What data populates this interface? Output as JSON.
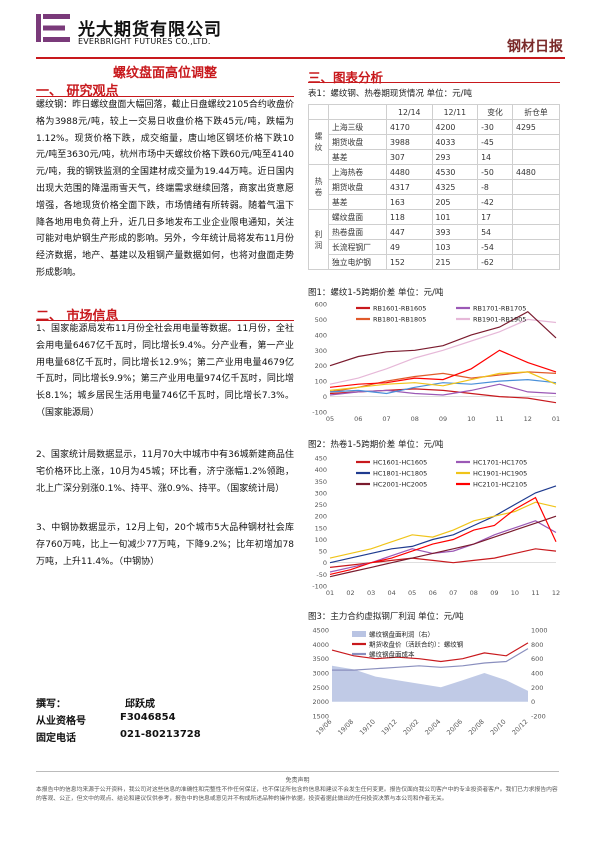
{
  "header": {
    "company_cn": "光大期货有限公司",
    "company_en": "EVERBRIGHT FUTURES CO.,LTD.",
    "report_title": "钢材日报"
  },
  "headline": "螺纹盘面高位调整",
  "section1": {
    "title": "一、  研究观点",
    "text": "螺纹钢：昨日螺纹盘面大幅回落，截止日盘螺纹2105合约收盘价格为3988元/吨，较上一交易日收盘价格下跌45元/吨，跌幅为1.12%。现货价格下跌，成交缩量，唐山地区钢坯价格下跌10元/吨至3630元/吨，杭州市场中天螺纹价格下跌60元/吨至4140元/吨，我的钢铁监测的全国建材成交量为19.44万吨。近日国内出现大范围的降温雨雪天气，终端需求继续回落，商家出货意愿增强，各地现货价格全面下跌，市场情绪有所转弱。随着气温下降各地用电负荷上升，近几日多地发布工业企业限电通知，关注可能对电炉钢生产形成的影响。另外，今年统计局将发布11月份经济数据，地产、基建以及粗钢产量数据如何，也将对盘面走势形成影响。"
  },
  "section2": {
    "title": "二、  市场信息",
    "items": [
      "1、国家能源局发布11月份全社会用电量等数据。11月份，全社会用电量6467亿千瓦时，同比增长9.4%。分产业看，第一产业用电量68亿千瓦时，同比增长12.9%；第二产业用电量4679亿千瓦时，同比增长9.9%；第三产业用电量974亿千瓦时，同比增长8.1%；城乡居民生活用电量746亿千瓦时，同比增长7.3%。（国家能源局）",
      "2、国家统计局数据显示，11月70大中城市中有36城新建商品住宅价格环比上涨，10月为45城；环比看，济宁涨幅1.2%领跑，北上广深分别涨0.1%、持平、涨0.9%、持平。（国家统计局）",
      "3、中钢协数据显示，12月上旬，20个城市5大品种钢材社会库存760万吨，比上一旬减少77万吨，下降9.2%；比年初增加78万吨，上升11.4%。（中钢协）"
    ]
  },
  "signature": {
    "author_label": "撰写：",
    "author": "邱跃成",
    "license_label": "从业资格号",
    "license": "F3046854",
    "phone_label": "固定电话",
    "phone": "021-80213728"
  },
  "section3": {
    "title": "三、图表分析",
    "table_caption": "表1：螺纹钢、热卷期现货情况   单位：元/吨",
    "table_headers": [
      "",
      "",
      "12/14",
      "12/11",
      "变化",
      "折仓单"
    ],
    "groups": [
      {
        "name": "螺纹",
        "rows": [
          [
            "上海三级",
            "4170",
            "4200",
            "-30",
            "4295"
          ],
          [
            "期货收盘",
            "3988",
            "4033",
            "-45",
            ""
          ],
          [
            "基差",
            "307",
            "293",
            "14",
            ""
          ]
        ]
      },
      {
        "name": "热卷",
        "rows": [
          [
            "上海热卷",
            "4480",
            "4530",
            "-50",
            "4480"
          ],
          [
            "期货收盘",
            "4317",
            "4325",
            "-8",
            ""
          ],
          [
            "基差",
            "163",
            "205",
            "-42",
            ""
          ]
        ]
      },
      {
        "name": "利润",
        "rows": [
          [
            "螺纹盘面",
            "118",
            "101",
            "17",
            ""
          ],
          [
            "热卷盘面",
            "447",
            "393",
            "54",
            ""
          ],
          [
            "长流程钢厂",
            "49",
            "103",
            "-54",
            ""
          ],
          [
            "独立电炉钢",
            "152",
            "215",
            "-62",
            ""
          ]
        ]
      }
    ]
  },
  "chart_data": [
    {
      "type": "line",
      "title": "图1：螺纹1-5跨期价差 单位：元/吨",
      "x": [
        "05",
        "06",
        "07",
        "08",
        "09",
        "10",
        "11",
        "12",
        "01"
      ],
      "ylim": [
        -100,
        600
      ],
      "yticks": [
        -100,
        0,
        100,
        200,
        300,
        400,
        500,
        600
      ],
      "series": [
        {
          "name": "RB1601-RB1605",
          "color": "#c8191d",
          "values": [
            20,
            30,
            40,
            50,
            40,
            20,
            0,
            -10,
            -40
          ]
        },
        {
          "name": "RB1701-RB1705",
          "color": "#9b59b6",
          "values": [
            10,
            30,
            40,
            20,
            10,
            40,
            80,
            30,
            20
          ]
        },
        {
          "name": "RB1801-RB1805",
          "color": "#e05a2a",
          "values": [
            30,
            60,
            100,
            130,
            150,
            120,
            140,
            160,
            150
          ]
        },
        {
          "name": "RB1901-RB1905",
          "color": "#e6b8d8",
          "values": [
            80,
            120,
            180,
            250,
            300,
            360,
            420,
            500,
            480
          ]
        },
        {
          "name": "",
          "color": "#7a1b2e",
          "values": [
            200,
            260,
            290,
            300,
            330,
            400,
            450,
            550,
            380
          ]
        },
        {
          "name": "",
          "color": "#4a90d9",
          "values": [
            30,
            40,
            20,
            60,
            90,
            80,
            100,
            110,
            90
          ]
        },
        {
          "name": "",
          "color": "#f0c419",
          "values": [
            40,
            60,
            80,
            90,
            70,
            110,
            150,
            160,
            80
          ]
        },
        {
          "name": "",
          "color": "#ff0000",
          "values": [
            60,
            80,
            90,
            120,
            110,
            180,
            300,
            220,
            160
          ]
        }
      ]
    },
    {
      "type": "line",
      "title": "图2：热卷1-5跨期价差 单位：元/吨",
      "x": [
        "01",
        "02",
        "03",
        "04",
        "05",
        "06",
        "07",
        "08",
        "09",
        "10",
        "11",
        "12"
      ],
      "ylim": [
        -100,
        450
      ],
      "yticks": [
        -100,
        -50,
        0,
        50,
        100,
        150,
        200,
        250,
        300,
        350,
        400,
        450
      ],
      "series": [
        {
          "name": "HC1601-HC1605",
          "color": "#c8191d",
          "values": [
            -20,
            -10,
            0,
            10,
            20,
            10,
            0,
            10,
            20,
            40,
            60,
            50
          ]
        },
        {
          "name": "HC1701-HC1705",
          "color": "#9b59b6",
          "values": [
            -40,
            -20,
            0,
            30,
            60,
            40,
            50,
            80,
            120,
            150,
            180,
            130
          ]
        },
        {
          "name": "HC1801-HC1805",
          "color": "#1f3b8f",
          "values": [
            0,
            20,
            40,
            60,
            70,
            100,
            120,
            160,
            200,
            250,
            300,
            330
          ]
        },
        {
          "name": "HC1901-HC1905",
          "color": "#f0c419",
          "values": [
            20,
            40,
            60,
            90,
            120,
            110,
            140,
            180,
            200,
            220,
            260,
            240
          ]
        },
        {
          "name": "HC2001-HC2005",
          "color": "#7a1b2e",
          "values": [
            -60,
            -40,
            -20,
            0,
            20,
            40,
            60,
            80,
            110,
            140,
            170,
            200
          ]
        },
        {
          "name": "HC2101-HC2105",
          "color": "#ff0000",
          "values": [
            -50,
            -30,
            0,
            20,
            50,
            80,
            100,
            140,
            160,
            230,
            280,
            90
          ]
        }
      ]
    },
    {
      "type": "line",
      "title": "图3：主力合约虚拟钢厂利润  单位：元/吨",
      "x": [
        "19/06",
        "19/08",
        "19/10",
        "19/12",
        "20/02",
        "20/04",
        "20/06",
        "20/08",
        "20/10",
        "20/12"
      ],
      "ylim_left": [
        1500,
        4500
      ],
      "yticks_left": [
        1500,
        2000,
        2500,
        3000,
        3500,
        4000,
        4500
      ],
      "ylim_right": [
        -200,
        1000
      ],
      "yticks_right": [
        -200,
        0,
        200,
        400,
        600,
        800,
        1000
      ],
      "series": [
        {
          "name": "螺纹钢盘面利润（右）",
          "color": "#b9c4e3",
          "axis": "right",
          "type": "area",
          "values": [
            500,
            450,
            350,
            300,
            250,
            200,
            300,
            400,
            300,
            150
          ]
        },
        {
          "name": "期货收盘价（活跃合约）：螺纹钢",
          "color": "#c8191d",
          "axis": "left",
          "values": [
            3800,
            3600,
            3500,
            3550,
            3500,
            3400,
            3500,
            3700,
            3600,
            4050
          ]
        },
        {
          "name": "螺纹钢盘面成本",
          "color": "#8a8fbe",
          "axis": "left",
          "values": [
            3100,
            3100,
            3150,
            3200,
            3250,
            3200,
            3250,
            3350,
            3400,
            3850
          ]
        }
      ]
    }
  ],
  "footer": {
    "disclaimer_title": "免责声明",
    "disclaimer": "本报告中的信息均来源于公开资料，我公司对这些信息的准确性和完整性不作任何保证，也不保证所包含的信息和建议不会发生任何变更。报告仅面向我公司客户中的专业投资者客户。我们已力求报告内容的客观、公正，但文中的观点、结论和建议仅供参考，报告中的信息或意见并不构成所述品种的操作依据，投资者据此做出的任何投资决策与本公司和作者无关。"
  }
}
